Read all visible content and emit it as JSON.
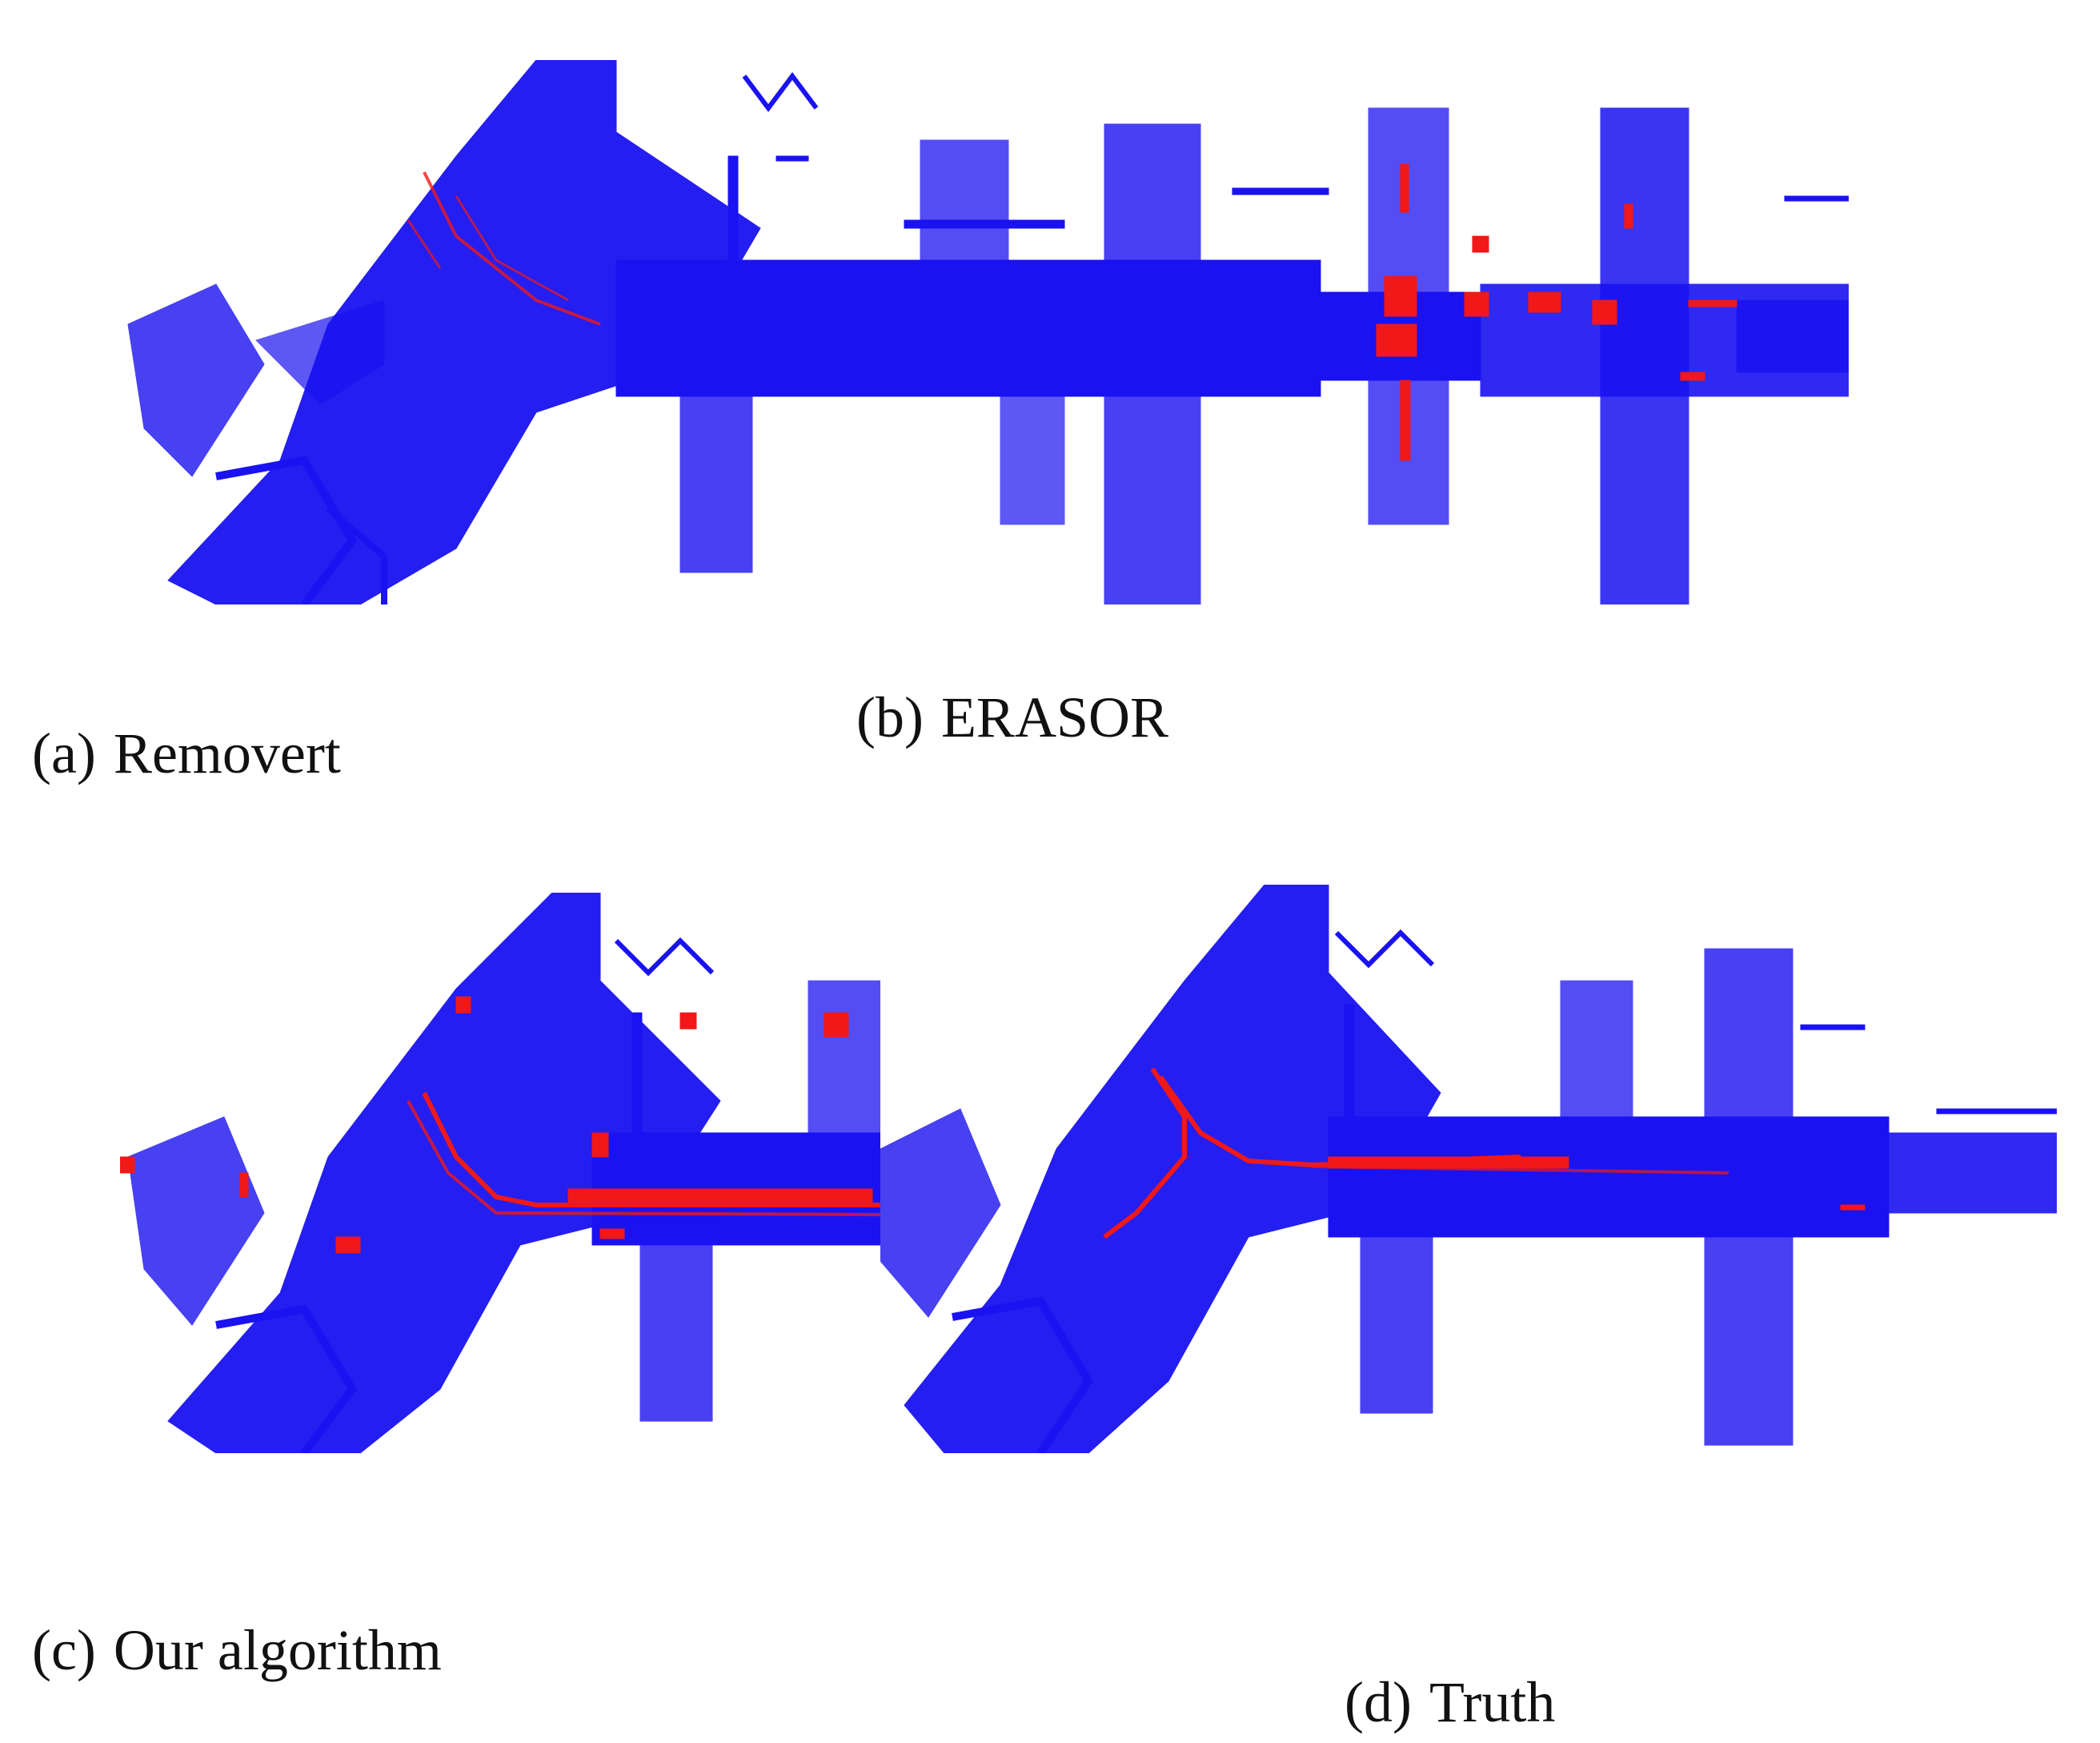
{
  "figure": {
    "colors": {
      "static_points": "#1a12f0",
      "dynamic_points": "#f01818",
      "background": "#ffffff"
    },
    "panels": [
      {
        "id": "a",
        "tag": "(a)",
        "label": "Removert"
      },
      {
        "id": "b",
        "tag": "(b)",
        "label": "ERASOR"
      },
      {
        "id": "c",
        "tag": "(c)",
        "label": "Our algorithm"
      },
      {
        "id": "d",
        "tag": "(d)",
        "label": "Truth"
      }
    ]
  }
}
